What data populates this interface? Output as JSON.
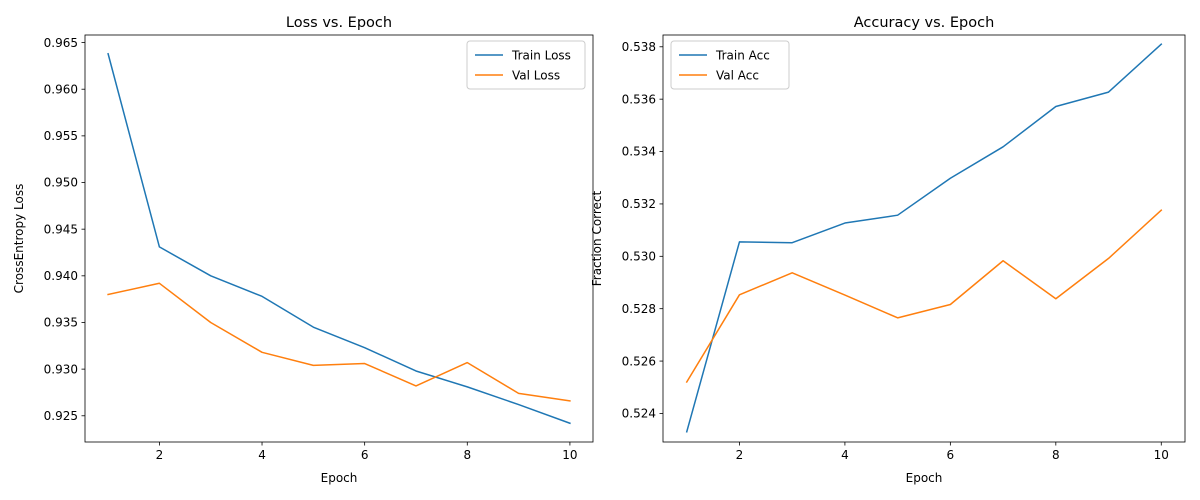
{
  "chart_data": [
    {
      "type": "line",
      "title": "Loss vs. Epoch",
      "xlabel": "Epoch",
      "ylabel": "CrossEntropy Loss",
      "x": [
        1,
        2,
        3,
        4,
        5,
        6,
        7,
        8,
        9,
        10
      ],
      "xlim": [
        0.55,
        10.45
      ],
      "ylim": [
        0.92219,
        0.96581
      ],
      "xticks": [
        2,
        4,
        6,
        8,
        10
      ],
      "xtick_labels": [
        "2",
        "4",
        "6",
        "8",
        "10"
      ],
      "yticks": [
        0.925,
        0.93,
        0.935,
        0.94,
        0.945,
        0.95,
        0.955,
        0.96,
        0.965
      ],
      "ytick_labels": [
        "0.925",
        "0.930",
        "0.935",
        "0.940",
        "0.945",
        "0.950",
        "0.955",
        "0.960",
        "0.965"
      ],
      "grid": false,
      "legend": "top-right",
      "series": [
        {
          "name": "Train Loss",
          "color": "#1f77b4",
          "values": [
            0.9638,
            0.9431,
            0.94,
            0.9378,
            0.9345,
            0.9323,
            0.9298,
            0.9281,
            0.9262,
            0.9242
          ]
        },
        {
          "name": "Val Loss",
          "color": "#ff7f0e",
          "values": [
            0.938,
            0.9392,
            0.935,
            0.9318,
            0.9304,
            0.9306,
            0.9282,
            0.9307,
            0.9274,
            0.9266
          ]
        }
      ]
    },
    {
      "type": "line",
      "title": "Accuracy vs. Epoch",
      "xlabel": "Epoch",
      "ylabel": "Fraction Correct",
      "x": [
        1,
        2,
        3,
        4,
        5,
        6,
        7,
        8,
        9,
        10
      ],
      "xlim": [
        0.55,
        10.45
      ],
      "ylim": [
        0.52291,
        0.53845
      ],
      "xticks": [
        2,
        4,
        6,
        8,
        10
      ],
      "xtick_labels": [
        "2",
        "4",
        "6",
        "8",
        "10"
      ],
      "yticks": [
        0.524,
        0.526,
        0.528,
        0.53,
        0.532,
        0.534,
        0.536,
        0.538
      ],
      "ytick_labels": [
        "0.524",
        "0.526",
        "0.528",
        "0.530",
        "0.532",
        "0.534",
        "0.536",
        "0.538"
      ],
      "grid": false,
      "legend": "top-left",
      "series": [
        {
          "name": "Train Acc",
          "color": "#1f77b4",
          "values": [
            0.5233,
            0.53055,
            0.53052,
            0.53127,
            0.53157,
            0.53298,
            0.53418,
            0.53572,
            0.53627,
            0.5381
          ]
        },
        {
          "name": "Val Acc",
          "color": "#ff7f0e",
          "values": [
            0.5252,
            0.52853,
            0.52937,
            0.52852,
            0.52765,
            0.52816,
            0.52983,
            0.52838,
            0.52992,
            0.53176
          ]
        }
      ]
    }
  ]
}
